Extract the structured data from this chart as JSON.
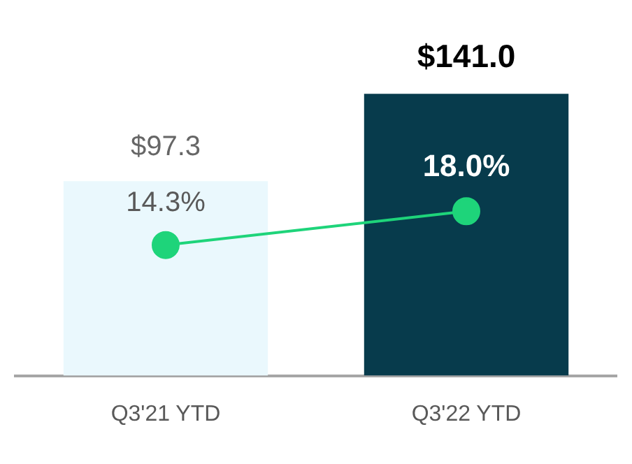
{
  "chart_data": {
    "type": "bar",
    "categories": [
      "Q3'21 YTD",
      "Q3'22 YTD"
    ],
    "series": [
      {
        "type": "bar",
        "colors": [
          "#eaf8fd",
          "#073b4c"
        ],
        "values": [
          97.3,
          141.0
        ],
        "value_labels": [
          "$97.3",
          "$141.0"
        ]
      },
      {
        "type": "line",
        "axis": "y2",
        "color": "#1ed47a",
        "values": [
          14.3,
          18.0
        ],
        "value_labels": [
          "14.3%",
          "18.0%"
        ]
      }
    ],
    "tick_labels": "x",
    "grid": false,
    "legend": false,
    "marker": "circle",
    "line_style": "solid"
  }
}
